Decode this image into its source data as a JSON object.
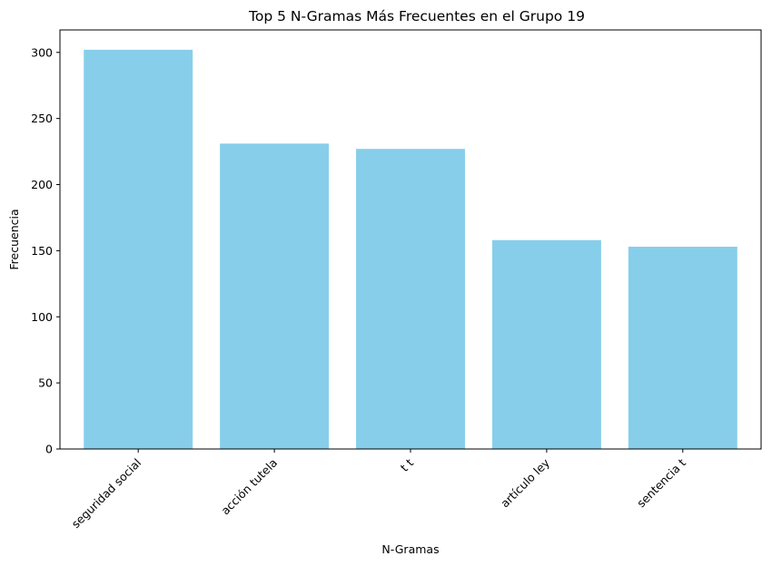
{
  "chart_data": {
    "type": "bar",
    "title": "Top 5 N-Gramas Más Frecuentes en el Grupo 19",
    "xlabel": "N-Gramas",
    "ylabel": "Frecuencia",
    "categories": [
      "seguridad social",
      "acción tutela",
      "t t",
      "artículo ley",
      "sentencia t"
    ],
    "values": [
      302,
      231,
      227,
      158,
      153
    ],
    "ylim": [
      0,
      317
    ],
    "yticks": [
      0,
      50,
      100,
      150,
      200,
      250,
      300
    ],
    "bar_color": "#87ceeb",
    "grid": false,
    "xtick_rotation": 45
  }
}
